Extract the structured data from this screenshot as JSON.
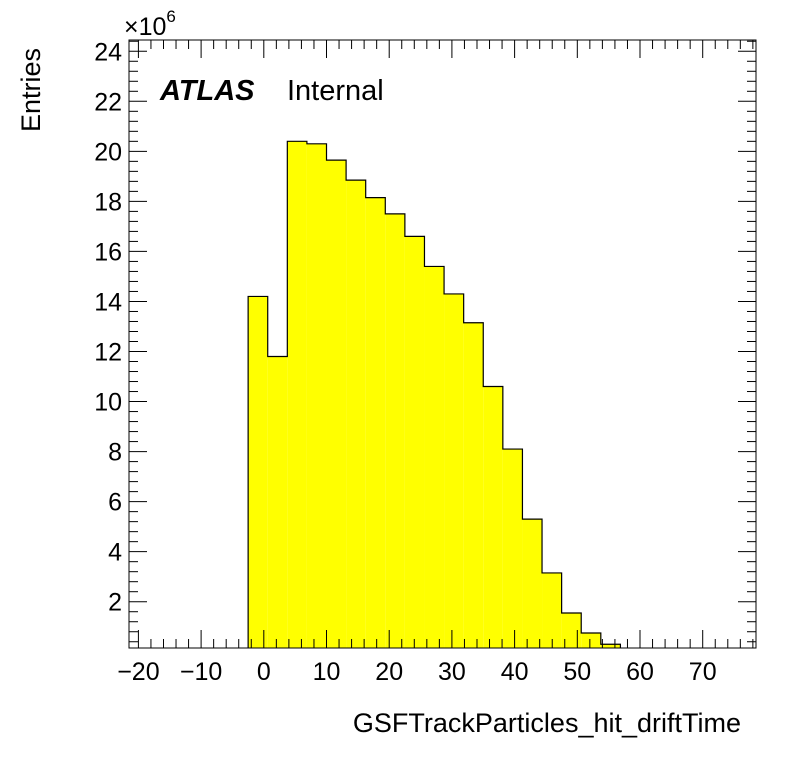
{
  "chart_data": {
    "type": "bar",
    "style": "histogram",
    "xlabel": "GSFTrackParticles_hit_driftTime",
    "ylabel": "Entries",
    "xlim": [
      -21.5,
      78.5
    ],
    "ylim": [
      0.15,
      24.45
    ],
    "y_multiplier_base": "×10",
    "y_multiplier_exp": "6",
    "fill_color": "#ffff00",
    "edge_color": "#000000",
    "label_main": "ATLAS",
    "label_sub": "Internal",
    "x_ticks": [
      -20,
      -10,
      0,
      10,
      20,
      30,
      40,
      50,
      60,
      70
    ],
    "x_tick_labels": [
      "−20",
      "−10",
      "0",
      "10",
      "20",
      "30",
      "40",
      "50",
      "60",
      "70"
    ],
    "y_ticks": [
      2,
      4,
      6,
      8,
      10,
      12,
      14,
      16,
      18,
      20,
      22,
      24
    ],
    "y_tick_labels": [
      "2",
      "4",
      "6",
      "8",
      "10",
      "12",
      "14",
      "16",
      "18",
      "20",
      "22",
      "24"
    ],
    "bin_edges": [
      -2.5,
      0.625,
      3.75,
      6.875,
      10.0,
      13.125,
      16.25,
      19.375,
      22.5,
      25.625,
      28.75,
      31.875,
      35.0,
      38.125,
      41.25,
      44.375,
      47.5,
      50.625,
      53.75,
      56.875
    ],
    "values": [
      14.2,
      11.8,
      20.4,
      20.3,
      19.65,
      18.85,
      18.15,
      17.5,
      16.6,
      15.4,
      14.3,
      13.15,
      10.6,
      8.1,
      5.3,
      3.15,
      1.55,
      0.75,
      0.3
    ]
  }
}
